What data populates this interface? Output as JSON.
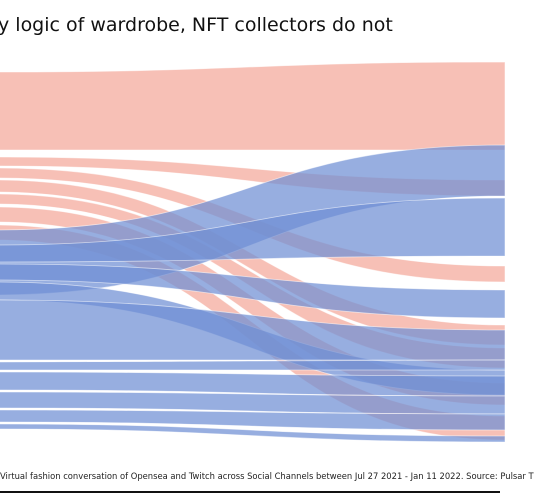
{
  "title": "y logic of wardrobe, NFT collectors do not",
  "footer": "Virtual fashion conversation of Opensea and Twitch across Social Channels between Jul 27 2021 - Jan 11 2022. Source: Pulsar T",
  "colors": {
    "pink": "#f4a79a",
    "blue": "#6f8fd4",
    "overlap": "#7c7aa8"
  },
  "chart_data": {
    "type": "sankey",
    "title": "y logic of wardrobe, NFT collectors do not",
    "xlabel": "",
    "ylabel": "",
    "flows": [
      {
        "group": "pink",
        "y0": [
          72,
          150
        ],
        "y1": [
          62,
          150
        ]
      },
      {
        "group": "pink",
        "y0": [
          157,
          166
        ],
        "y1": [
          180,
          196
        ]
      },
      {
        "group": "pink",
        "y0": [
          168,
          178
        ],
        "y1": [
          266,
          282
        ]
      },
      {
        "group": "pink",
        "y0": [
          180,
          192
        ],
        "y1": [
          325,
          345
        ]
      },
      {
        "group": "pink",
        "y0": [
          194,
          204
        ],
        "y1": [
          348,
          368
        ]
      },
      {
        "group": "pink",
        "y0": [
          207,
          222
        ],
        "y1": [
          383,
          405
        ]
      },
      {
        "group": "pink",
        "y0": [
          225,
          240
        ],
        "y1": [
          416,
          440
        ]
      },
      {
        "group": "blue",
        "y0": [
          230,
          295
        ],
        "y1": [
          145,
          196
        ]
      },
      {
        "group": "blue",
        "y0": [
          245,
          262
        ],
        "y1": [
          198,
          256
        ]
      },
      {
        "group": "blue",
        "y0": [
          264,
          280
        ],
        "y1": [
          290,
          318
        ]
      },
      {
        "group": "blue",
        "y0": [
          282,
          300
        ],
        "y1": [
          370,
          395
        ]
      },
      {
        "group": "blue",
        "y0": [
          300,
          360
        ],
        "y1": [
          330,
          360
        ]
      },
      {
        "group": "blue",
        "y0": [
          362,
          370
        ],
        "y1": [
          360,
          370
        ]
      },
      {
        "group": "blue",
        "y0": [
          372,
          390
        ],
        "y1": [
          376,
          396
        ]
      },
      {
        "group": "blue",
        "y0": [
          392,
          408
        ],
        "y1": [
          396,
          414
        ]
      },
      {
        "group": "blue",
        "y0": [
          410,
          422
        ],
        "y1": [
          414,
          430
        ]
      },
      {
        "group": "blue",
        "y0": [
          424,
          429
        ],
        "y1": [
          436,
          442
        ]
      }
    ]
  }
}
